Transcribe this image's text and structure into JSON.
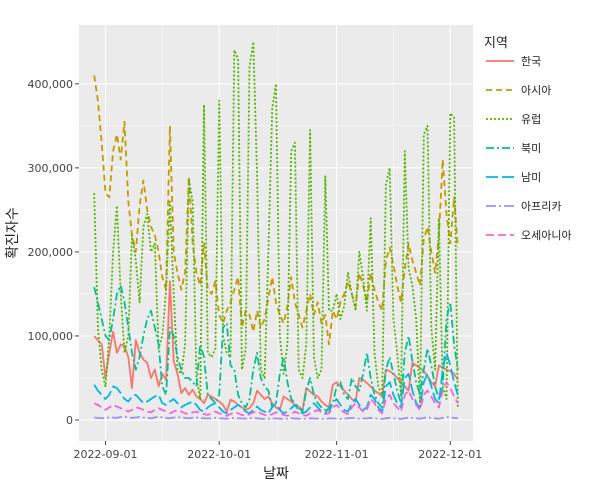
{
  "chart_data": {
    "type": "line",
    "xlabel": "날짜",
    "ylabel": "확진자수",
    "x_range": [
      "2022-08-25",
      "2022-12-07"
    ],
    "ylim": [
      -25000,
      470000
    ],
    "x_ticks": [
      {
        "date": "2022-09-01",
        "label": "2022-09-01"
      },
      {
        "date": "2022-10-01",
        "label": "2022-10-01"
      },
      {
        "date": "2022-11-01",
        "label": "2022-11-01"
      },
      {
        "date": "2022-12-01",
        "label": "2022-12-01"
      }
    ],
    "y_ticks": [
      {
        "value": 0,
        "label": "0"
      },
      {
        "value": 100000,
        "label": "100,000"
      },
      {
        "value": 200000,
        "label": "200,000"
      },
      {
        "value": 300000,
        "label": "300,000"
      },
      {
        "value": 400000,
        "label": "400,000"
      }
    ],
    "grid": true,
    "legend": {
      "title": "지역",
      "position": "right"
    },
    "x": [
      "2022-08-29",
      "2022-08-30",
      "2022-08-31",
      "2022-09-01",
      "2022-09-02",
      "2022-09-03",
      "2022-09-04",
      "2022-09-05",
      "2022-09-06",
      "2022-09-07",
      "2022-09-08",
      "2022-09-09",
      "2022-09-10",
      "2022-09-11",
      "2022-09-12",
      "2022-09-13",
      "2022-09-14",
      "2022-09-15",
      "2022-09-16",
      "2022-09-17",
      "2022-09-18",
      "2022-09-19",
      "2022-09-20",
      "2022-09-21",
      "2022-09-22",
      "2022-09-23",
      "2022-09-24",
      "2022-09-25",
      "2022-09-26",
      "2022-09-27",
      "2022-09-28",
      "2022-09-29",
      "2022-09-30",
      "2022-10-01",
      "2022-10-02",
      "2022-10-03",
      "2022-10-04",
      "2022-10-05",
      "2022-10-06",
      "2022-10-07",
      "2022-10-08",
      "2022-10-09",
      "2022-10-10",
      "2022-10-11",
      "2022-10-12",
      "2022-10-13",
      "2022-10-14",
      "2022-10-15",
      "2022-10-16",
      "2022-10-17",
      "2022-10-18",
      "2022-10-19",
      "2022-10-20",
      "2022-10-21",
      "2022-10-22",
      "2022-10-23",
      "2022-10-24",
      "2022-10-25",
      "2022-10-26",
      "2022-10-27",
      "2022-10-28",
      "2022-10-29",
      "2022-10-30",
      "2022-10-31",
      "2022-11-01",
      "2022-11-02",
      "2022-11-03",
      "2022-11-04",
      "2022-11-05",
      "2022-11-06",
      "2022-11-07",
      "2022-11-08",
      "2022-11-09",
      "2022-11-10",
      "2022-11-11",
      "2022-11-12",
      "2022-11-13",
      "2022-11-14",
      "2022-11-15",
      "2022-11-16",
      "2022-11-17",
      "2022-11-18",
      "2022-11-19",
      "2022-11-20",
      "2022-11-21",
      "2022-11-22",
      "2022-11-23",
      "2022-11-24",
      "2022-11-25",
      "2022-11-26",
      "2022-11-27",
      "2022-11-28",
      "2022-11-29",
      "2022-11-30",
      "2022-12-01",
      "2022-12-02",
      "2022-12-03"
    ],
    "series": [
      {
        "name": "한국",
        "color": "#F8766D",
        "dash": "solid",
        "values": [
          100000,
          95000,
          90000,
          50000,
          80000,
          105000,
          80000,
          90000,
          88000,
          75000,
          38000,
          95000,
          80000,
          72000,
          68000,
          50000,
          60000,
          40000,
          55000,
          48000,
          165000,
          70000,
          55000,
          32000,
          38000,
          30000,
          36000,
          28000,
          25000,
          20000,
          30000,
          28000,
          25000,
          22000,
          18000,
          10000,
          24000,
          22000,
          18000,
          15000,
          12000,
          14000,
          20000,
          35000,
          30000,
          25000,
          28000,
          20000,
          15000,
          12000,
          28000,
          25000,
          22000,
          18000,
          16000,
          12000,
          38000,
          34000,
          30000,
          28000,
          22000,
          18000,
          15000,
          42000,
          45000,
          40000,
          35000,
          30000,
          25000,
          22000,
          50000,
          48000,
          44000,
          40000,
          35000,
          32000,
          28000,
          60000,
          58000,
          55000,
          50000,
          45000,
          40000,
          35000,
          68000,
          65000,
          62000,
          58000,
          52000,
          45000,
          40000,
          65000,
          62000,
          60000,
          58000,
          55000,
          48000
        ]
      },
      {
        "name": "아시아",
        "color": "#C49A00",
        "dash": "6,4",
        "values": [
          410000,
          380000,
          330000,
          270000,
          265000,
          320000,
          340000,
          310000,
          355000,
          260000,
          220000,
          200000,
          255000,
          285000,
          250000,
          230000,
          220000,
          200000,
          170000,
          155000,
          350000,
          200000,
          175000,
          155000,
          175000,
          290000,
          210000,
          175000,
          160000,
          210000,
          155000,
          150000,
          165000,
          125000,
          115000,
          130000,
          140000,
          155000,
          170000,
          110000,
          130000,
          125000,
          105000,
          130000,
          110000,
          120000,
          145000,
          170000,
          140000,
          125000,
          115000,
          135000,
          170000,
          140000,
          125000,
          110000,
          130000,
          150000,
          125000,
          140000,
          115000,
          125000,
          90000,
          130000,
          120000,
          140000,
          150000,
          165000,
          150000,
          135000,
          175000,
          160000,
          140000,
          175000,
          155000,
          140000,
          130000,
          190000,
          205000,
          185000,
          160000,
          140000,
          180000,
          210000,
          190000,
          175000,
          160000,
          215000,
          230000,
          200000,
          175000,
          220000,
          310000,
          245000,
          210000,
          265000,
          205000
        ]
      },
      {
        "name": "유럽",
        "color": "#53B400",
        "dash": "2,2",
        "values": [
          270000,
          110000,
          60000,
          40000,
          100000,
          200000,
          255000,
          150000,
          80000,
          100000,
          220000,
          190000,
          140000,
          230000,
          245000,
          200000,
          210000,
          85000,
          100000,
          155000,
          260000,
          150000,
          60000,
          55000,
          90000,
          285000,
          260000,
          50000,
          25000,
          375000,
          80000,
          75000,
          85000,
          380000,
          100000,
          80000,
          75000,
          440000,
          430000,
          60000,
          85000,
          420000,
          450000,
          290000,
          60000,
          50000,
          200000,
          370000,
          400000,
          100000,
          55000,
          90000,
          320000,
          330000,
          60000,
          50000,
          90000,
          345000,
          75000,
          50000,
          60000,
          290000,
          130000,
          130000,
          150000,
          120000,
          135000,
          175000,
          150000,
          130000,
          200000,
          170000,
          130000,
          240000,
          80000,
          40000,
          30000,
          280000,
          300000,
          120000,
          80000,
          30000,
          320000,
          180000,
          160000,
          120000,
          20000,
          340000,
          350000,
          110000,
          60000,
          240000,
          40000,
          25000,
          365000,
          360000,
          15000
        ]
      },
      {
        "name": "북미",
        "color": "#00C094",
        "dash": "8,3,2,3",
        "values": [
          158000,
          140000,
          120000,
          100000,
          95000,
          120000,
          150000,
          160000,
          140000,
          110000,
          80000,
          60000,
          75000,
          100000,
          120000,
          130000,
          110000,
          90000,
          40000,
          30000,
          110000,
          100000,
          75000,
          60000,
          50000,
          50000,
          45000,
          40000,
          90000,
          75000,
          30000,
          25000,
          20000,
          30000,
          110000,
          115000,
          65000,
          60000,
          30000,
          20000,
          15000,
          25000,
          60000,
          80000,
          50000,
          40000,
          35000,
          15000,
          20000,
          55000,
          75000,
          45000,
          25000,
          20000,
          15000,
          10000,
          35000,
          50000,
          30000,
          20000,
          15000,
          12000,
          10000,
          20000,
          40000,
          45000,
          30000,
          25000,
          50000,
          40000,
          35000,
          55000,
          80000,
          50000,
          30000,
          20000,
          15000,
          60000,
          75000,
          55000,
          35000,
          20000,
          80000,
          100000,
          70000,
          45000,
          30000,
          60000,
          85000,
          65000,
          40000,
          25000,
          40000,
          120000,
          140000,
          90000,
          60000
        ]
      },
      {
        "name": "남미",
        "color": "#00B6EB",
        "dash": "12,4",
        "values": [
          42000,
          35000,
          30000,
          25000,
          30000,
          40000,
          38000,
          32000,
          25000,
          22000,
          28000,
          30000,
          25000,
          20000,
          22000,
          25000,
          28000,
          30000,
          20000,
          18000,
          22000,
          25000,
          20000,
          15000,
          18000,
          20000,
          22000,
          18000,
          12000,
          10000,
          15000,
          18000,
          20000,
          15000,
          10000,
          8000,
          12000,
          15000,
          18000,
          15000,
          10000,
          8000,
          12000,
          16000,
          12000,
          10000,
          8000,
          15000,
          20000,
          12000,
          8000,
          10000,
          14000,
          18000,
          12000,
          8000,
          10000,
          15000,
          20000,
          15000,
          10000,
          8000,
          15000,
          20000,
          25000,
          18000,
          12000,
          10000,
          20000,
          25000,
          18000,
          12000,
          15000,
          30000,
          25000,
          15000,
          10000,
          40000,
          45000,
          30000,
          20000,
          15000,
          50000,
          55000,
          35000,
          20000,
          15000,
          45000,
          55000,
          40000,
          25000,
          20000,
          60000,
          80000,
          65000,
          45000,
          30000
        ]
      },
      {
        "name": "아프리카",
        "color": "#A58AFF",
        "dash": "10,3,2,3",
        "values": [
          3000,
          2500,
          2000,
          2500,
          3000,
          2800,
          2500,
          3500,
          4000,
          3000,
          2500,
          3000,
          3500,
          3000,
          2500,
          2000,
          3000,
          4000,
          3000,
          2500,
          2000,
          3000,
          3500,
          3000,
          2500,
          2000,
          2500,
          3000,
          2500,
          2000,
          1800,
          2000,
          2500,
          2000,
          1800,
          1500,
          2000,
          2500,
          2000,
          1800,
          1500,
          2000,
          2500,
          2000,
          1500,
          1200,
          1500,
          2000,
          1800,
          1500,
          1200,
          1500,
          2000,
          1800,
          1500,
          1200,
          1500,
          2000,
          1800,
          1500,
          1200,
          1500,
          2000,
          1800,
          1500,
          1200,
          1500,
          2000,
          2500,
          2000,
          1500,
          1800,
          2000,
          2500,
          2000,
          1500,
          1200,
          2000,
          2500,
          2000,
          1500,
          1200,
          2000,
          3000,
          2500,
          2000,
          1500,
          2500,
          3000,
          2500,
          2000,
          1500,
          2500,
          3500,
          3000,
          2500,
          2000
        ]
      },
      {
        "name": "오세아니아",
        "color": "#FB61D7",
        "dash": "8,4",
        "values": [
          20000,
          18000,
          15000,
          12000,
          15000,
          18000,
          16000,
          14000,
          12000,
          10000,
          12000,
          15000,
          14000,
          12000,
          10000,
          9000,
          12000,
          14000,
          12000,
          10000,
          8000,
          10000,
          12000,
          10000,
          8000,
          7000,
          9000,
          10000,
          8000,
          7000,
          6000,
          8000,
          10000,
          8000,
          6000,
          5000,
          7000,
          9000,
          8000,
          6000,
          5000,
          7000,
          9000,
          10000,
          8000,
          6000,
          5000,
          7000,
          9000,
          8000,
          6000,
          5000,
          7000,
          10000,
          8000,
          6000,
          5000,
          8000,
          10000,
          12000,
          9000,
          7000,
          8000,
          15000,
          18000,
          12000,
          9000,
          7000,
          15000,
          20000,
          15000,
          10000,
          12000,
          25000,
          20000,
          12000,
          8000,
          25000,
          30000,
          20000,
          15000,
          10000,
          30000,
          35000,
          25000,
          18000,
          12000,
          30000,
          35000,
          28000,
          20000,
          15000,
          35000,
          45000,
          38000,
          28000,
          20000
        ]
      }
    ]
  }
}
